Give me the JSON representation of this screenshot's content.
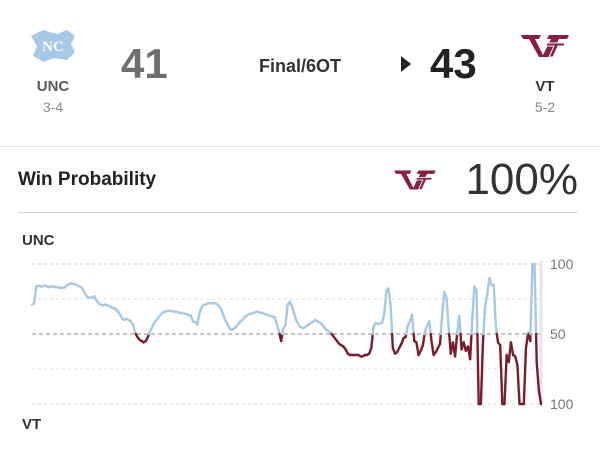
{
  "game": {
    "status": "Final/6OT",
    "home": {
      "abbr": "UNC",
      "record": "3-4",
      "score": "41",
      "logo": "unc-ram-logo",
      "color": "#7BAFD4"
    },
    "away": {
      "abbr": "VT",
      "record": "5-2",
      "score": "43",
      "logo": "vt-logo",
      "color": "#861F41"
    },
    "winner": "away"
  },
  "win_probability": {
    "title": "Win Probability",
    "leader_logo": "vt-logo",
    "value": "100%"
  },
  "chart_data": {
    "type": "line",
    "top_label": "UNC",
    "bottom_label": "VT",
    "y_ticks": [
      "100",
      "50",
      "100"
    ],
    "ylim": [
      -100,
      100
    ],
    "colors": {
      "unc": "#A7C8E6",
      "vt": "#7A1C2B"
    },
    "series": [
      {
        "values": [
          42,
          44,
          68,
          69,
          68,
          68,
          69,
          68,
          67,
          68,
          68,
          67,
          67,
          66,
          66,
          66,
          69,
          71,
          72,
          72,
          71,
          70,
          68,
          67,
          62,
          56,
          52,
          52,
          52,
          54,
          48,
          44,
          42,
          41,
          42,
          41,
          40,
          38,
          37,
          36,
          32,
          28,
          22,
          20,
          22,
          20,
          18,
          14,
          2,
          -4,
          -8,
          -10,
          -12,
          -10,
          -4,
          4,
          10,
          16,
          20,
          24,
          28,
          31,
          32,
          33,
          33,
          33,
          32,
          32,
          31,
          30,
          30,
          29,
          28,
          27,
          26,
          18,
          17,
          14,
          30,
          38,
          42,
          42,
          44,
          44,
          44,
          44,
          43,
          40,
          36,
          28,
          20,
          14,
          8,
          6,
          8,
          10,
          14,
          18,
          20,
          24,
          26,
          28,
          29,
          30,
          31,
          32,
          31,
          30,
          29,
          28,
          27,
          26,
          25,
          24,
          14,
          4,
          -10,
          8,
          12,
          42,
          46,
          40,
          30,
          20,
          14,
          10,
          8,
          10,
          12,
          14,
          16,
          18,
          20,
          18,
          16,
          14,
          10,
          6,
          4,
          2,
          -2,
          -6,
          -10,
          -14,
          -16,
          -18,
          -22,
          -28,
          -30,
          -30,
          -30,
          -30,
          -30,
          -32,
          -32,
          -30,
          -30,
          -28,
          -20,
          10,
          16,
          14,
          15,
          16,
          28,
          62,
          65,
          40,
          -20,
          -28,
          -26,
          -20,
          -14,
          -6,
          -4,
          12,
          18,
          28,
          -10,
          -12,
          -30,
          -24,
          -16,
          4,
          12,
          18,
          -10,
          -30,
          -26,
          -20,
          -14,
          28,
          60,
          52,
          10,
          -28,
          -12,
          -32,
          2,
          26,
          -22,
          -12,
          -24,
          -18,
          -36,
          22,
          68,
          62,
          -100,
          -120,
          -10,
          40,
          58,
          80,
          70,
          70,
          10,
          -12,
          -16,
          -100,
          -120,
          -30,
          -40,
          -12,
          -30,
          -32,
          -44,
          -104,
          -116,
          -100,
          -20,
          2,
          -10,
          100,
          100,
          -40,
          -80,
          -100
        ]
      }
    ]
  }
}
